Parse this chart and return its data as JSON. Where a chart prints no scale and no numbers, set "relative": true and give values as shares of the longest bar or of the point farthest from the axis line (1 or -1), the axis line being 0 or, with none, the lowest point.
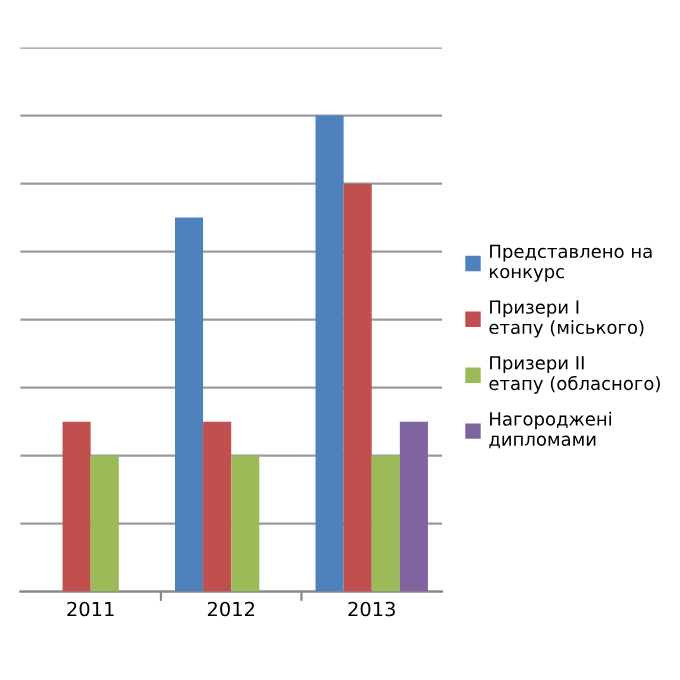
{
  "chart_data": {
    "type": "bar",
    "relative": true,
    "grid": "y",
    "legend": "right",
    "categories": [
      "2011",
      "2012",
      "2013"
    ],
    "series": [
      {
        "name": "Представлено на конкурс",
        "color": "#4f81bd",
        "values": [
          null,
          0.786,
          1
        ]
      },
      {
        "name": "Призери І етапу (міського)",
        "color": "#c0504d",
        "values": [
          0.357,
          0.357,
          0.857
        ]
      },
      {
        "name": "Призери ІІ етапу (обласного)",
        "color": "#9bbb59",
        "values": [
          0.286,
          0.286,
          0.286
        ]
      },
      {
        "name": "Нагороджені дипломами",
        "color": "#8064a2",
        "values": [
          null,
          null,
          0.357
        ]
      }
    ]
  }
}
